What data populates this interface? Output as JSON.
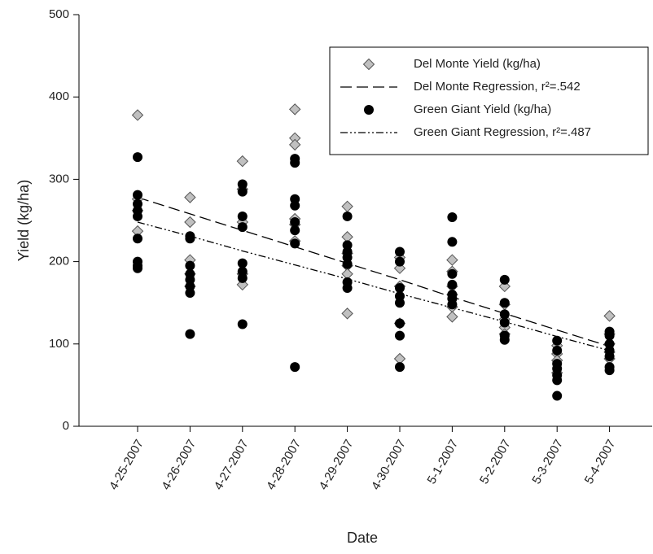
{
  "chart_data": {
    "type": "scatter",
    "x_label": "Date",
    "y_label": "Yield (kg/ha)",
    "categories": [
      "4-25-2007",
      "4-26-2007",
      "4-27-2007",
      "4-28-2007",
      "4-29-2007",
      "4-30-2007",
      "5-1-2007",
      "5-2-2007",
      "5-3-2007",
      "5-4-2007"
    ],
    "ylim": [
      0,
      500
    ],
    "yticks": [
      0,
      100,
      200,
      300,
      400,
      500
    ],
    "series": [
      {
        "name": "Del Monte Yield (kg/ha)",
        "kind": "scatter",
        "marker": "diamond",
        "color": "#c0c0c0",
        "values": [
          [
            378,
            276,
            237,
            262
          ],
          [
            278,
            248,
            202,
            185,
            170
          ],
          [
            322,
            288,
            248,
            185,
            172
          ],
          [
            385,
            350,
            342,
            252,
            225,
            245
          ],
          [
            267,
            230,
            210,
            195,
            185,
            137
          ],
          [
            205,
            192,
            125,
            82,
            170
          ],
          [
            202,
            188,
            170,
            160,
            145,
            133
          ],
          [
            170,
            148,
            130,
            120,
            112
          ],
          [
            98,
            88,
            80,
            65
          ],
          [
            134,
            112,
            100,
            90,
            82
          ]
        ]
      },
      {
        "name": "Del Monte Regression, r²=.542",
        "kind": "line",
        "dash": "14,6",
        "color": "#000000",
        "values": [
          278,
          258,
          238,
          218,
          198,
          178,
          157,
          137,
          117,
          97
        ]
      },
      {
        "name": "Green Giant Yield (kg/ha)",
        "kind": "scatter",
        "marker": "circle",
        "color": "#000000",
        "values": [
          [
            327,
            281,
            270,
            262,
            255,
            228,
            200,
            195,
            192
          ],
          [
            231,
            228,
            195,
            185,
            178,
            170,
            162,
            112
          ],
          [
            294,
            285,
            255,
            242,
            198,
            188,
            180,
            124
          ],
          [
            320,
            325,
            276,
            268,
            248,
            238,
            222,
            72
          ],
          [
            255,
            220,
            212,
            205,
            197,
            175,
            168
          ],
          [
            212,
            200,
            168,
            158,
            150,
            125,
            110,
            72
          ],
          [
            254,
            224,
            185,
            172,
            160,
            155,
            148
          ],
          [
            178,
            150,
            136,
            126,
            110,
            105
          ],
          [
            104,
            92,
            76,
            70,
            62,
            56,
            37
          ],
          [
            115,
            110,
            100,
            92,
            85,
            72,
            68
          ]
        ]
      },
      {
        "name": "Green Giant Regression, r²=.487",
        "kind": "line",
        "dash": "9,3,2,3,2,3",
        "color": "#000000",
        "values": [
          248,
          231,
          213,
          196,
          179,
          161,
          144,
          127,
          109,
          92
        ]
      }
    ]
  }
}
